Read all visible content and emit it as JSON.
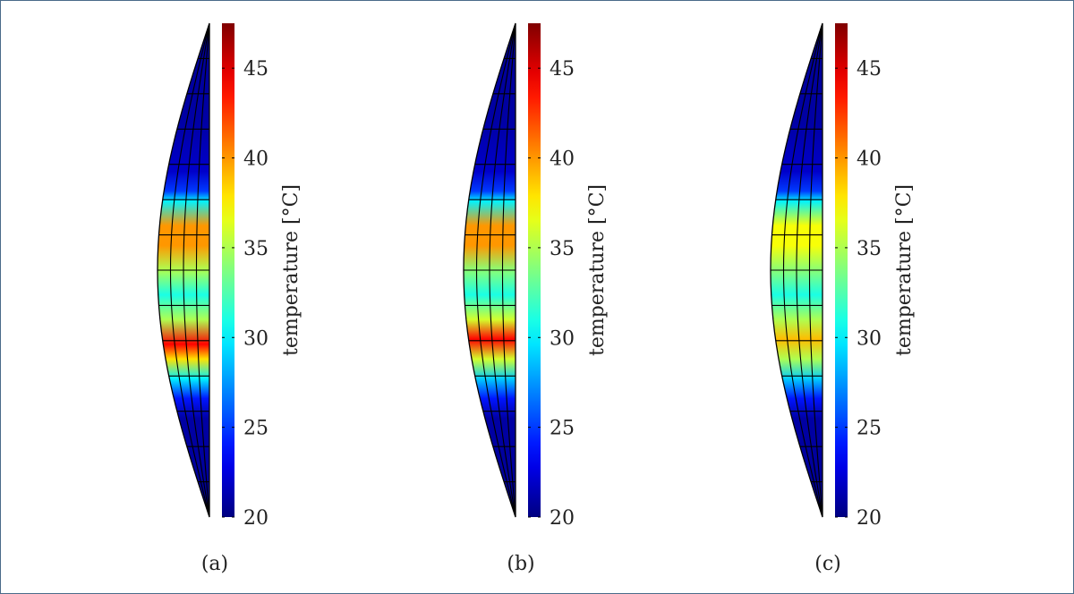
{
  "chart_data": [
    {
      "type": "heatmap",
      "panel_label": "(a)",
      "colorbar": {
        "label": "temperature [°C]",
        "ticks": [
          20,
          25,
          30,
          35,
          40,
          45
        ],
        "range": [
          20,
          47.5
        ],
        "colormap": "jet"
      },
      "profile": [
        {
          "y": 0,
          "t": 20.5
        },
        {
          "y": 0.2,
          "t": 21
        },
        {
          "y": 0.3,
          "t": 22
        },
        {
          "y": 0.34,
          "t": 25
        },
        {
          "y": 0.36,
          "t": 30
        },
        {
          "y": 0.41,
          "t": 40
        },
        {
          "y": 0.45,
          "t": 40
        },
        {
          "y": 0.5,
          "t": 35
        },
        {
          "y": 0.55,
          "t": 31
        },
        {
          "y": 0.6,
          "t": 35
        },
        {
          "y": 0.65,
          "t": 44
        },
        {
          "y": 0.68,
          "t": 38
        },
        {
          "y": 0.72,
          "t": 30
        },
        {
          "y": 0.76,
          "t": 24
        },
        {
          "y": 0.8,
          "t": 21
        },
        {
          "y": 1.0,
          "t": 20.5
        }
      ]
    },
    {
      "type": "heatmap",
      "panel_label": "(b)",
      "colorbar": {
        "label": "temperature [°C]",
        "ticks": [
          20,
          25,
          30,
          35,
          40,
          45
        ],
        "range": [
          20,
          47.5
        ],
        "colormap": "jet"
      },
      "profile": [
        {
          "y": 0,
          "t": 20.5
        },
        {
          "y": 0.2,
          "t": 21
        },
        {
          "y": 0.3,
          "t": 22
        },
        {
          "y": 0.34,
          "t": 25
        },
        {
          "y": 0.36,
          "t": 30
        },
        {
          "y": 0.41,
          "t": 40
        },
        {
          "y": 0.45,
          "t": 40
        },
        {
          "y": 0.5,
          "t": 34
        },
        {
          "y": 0.55,
          "t": 31
        },
        {
          "y": 0.6,
          "t": 36
        },
        {
          "y": 0.64,
          "t": 44
        },
        {
          "y": 0.68,
          "t": 36
        },
        {
          "y": 0.72,
          "t": 29
        },
        {
          "y": 0.76,
          "t": 24
        },
        {
          "y": 0.8,
          "t": 21
        },
        {
          "y": 1.0,
          "t": 20.5
        }
      ]
    },
    {
      "type": "heatmap",
      "panel_label": "(c)",
      "colorbar": {
        "label": "temperature [°C]",
        "ticks": [
          20,
          25,
          30,
          35,
          40,
          45
        ],
        "range": [
          20,
          47.5
        ],
        "colormap": "jet"
      },
      "profile": [
        {
          "y": 0,
          "t": 20.5
        },
        {
          "y": 0.2,
          "t": 21
        },
        {
          "y": 0.3,
          "t": 22
        },
        {
          "y": 0.34,
          "t": 25
        },
        {
          "y": 0.36,
          "t": 30
        },
        {
          "y": 0.41,
          "t": 37
        },
        {
          "y": 0.45,
          "t": 37
        },
        {
          "y": 0.5,
          "t": 34
        },
        {
          "y": 0.55,
          "t": 31
        },
        {
          "y": 0.6,
          "t": 35
        },
        {
          "y": 0.64,
          "t": 39
        },
        {
          "y": 0.68,
          "t": 35
        },
        {
          "y": 0.72,
          "t": 29
        },
        {
          "y": 0.76,
          "t": 24
        },
        {
          "y": 0.8,
          "t": 21
        },
        {
          "y": 1.0,
          "t": 20.5
        }
      ]
    }
  ]
}
